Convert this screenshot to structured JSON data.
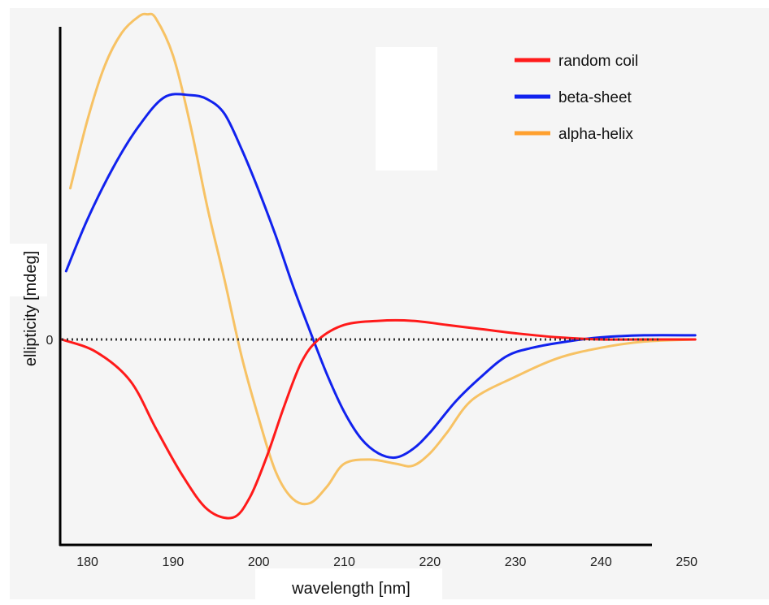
{
  "chart_data": {
    "type": "line",
    "title": "",
    "xlabel": "wavelength [nm]",
    "ylabel": "ellipticity [mdeg]",
    "xlim": [
      177,
      251
    ],
    "xticks": [
      180,
      190,
      200,
      210,
      220,
      230,
      240,
      250
    ],
    "yticks": [
      {
        "value": 0,
        "label": "0"
      }
    ],
    "ylim": [
      -1.0,
      1.57
    ],
    "zero_line": "dotted",
    "grid": false,
    "legend_position": "top-right",
    "series": [
      {
        "name": "random coil",
        "color": "#ff1a1a",
        "x": [
          177,
          181,
          185,
          188,
          191,
          194,
          197,
          199,
          201,
          203,
          205,
          207,
          210,
          214,
          218,
          222,
          226,
          230,
          235,
          240,
          245,
          251
        ],
        "y": [
          0.0,
          -0.06,
          -0.2,
          -0.43,
          -0.65,
          -0.82,
          -0.86,
          -0.76,
          -0.56,
          -0.32,
          -0.11,
          0.0,
          0.07,
          0.09,
          0.09,
          0.07,
          0.05,
          0.03,
          0.01,
          0.0,
          0.0,
          0.0
        ]
      },
      {
        "name": "beta-sheet",
        "color": "#1122ee",
        "x": [
          177.5,
          180,
          183,
          186,
          189,
          192,
          194,
          196,
          198,
          200,
          202,
          204,
          206,
          208,
          210,
          212,
          214,
          216,
          218,
          220,
          223,
          226,
          229,
          232,
          236,
          240,
          245,
          251
        ],
        "y": [
          0.33,
          0.58,
          0.83,
          1.03,
          1.17,
          1.18,
          1.16,
          1.09,
          0.92,
          0.72,
          0.5,
          0.26,
          0.04,
          -0.17,
          -0.35,
          -0.48,
          -0.55,
          -0.57,
          -0.53,
          -0.45,
          -0.3,
          -0.18,
          -0.08,
          -0.04,
          -0.01,
          0.01,
          0.02,
          0.02
        ]
      },
      {
        "name": "alpha-helix",
        "color": "#f7c264",
        "x": [
          178,
          180,
          182,
          184,
          186,
          187,
          188,
          190,
          192,
          194,
          196,
          198,
          200,
          202,
          204,
          206,
          208,
          210,
          213,
          216,
          218,
          220,
          222,
          225,
          230,
          235,
          240,
          245,
          251
        ],
        "y": [
          0.73,
          1.06,
          1.32,
          1.48,
          1.56,
          1.57,
          1.55,
          1.37,
          1.04,
          0.64,
          0.29,
          -0.08,
          -0.38,
          -0.64,
          -0.77,
          -0.79,
          -0.71,
          -0.6,
          -0.58,
          -0.6,
          -0.61,
          -0.55,
          -0.45,
          -0.29,
          -0.18,
          -0.09,
          -0.04,
          -0.01,
          0.0
        ]
      }
    ]
  }
}
